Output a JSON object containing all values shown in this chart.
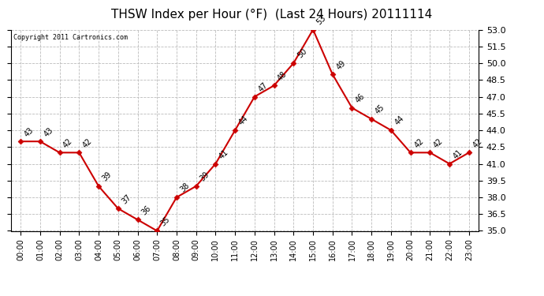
{
  "title": "THSW Index per Hour (°F)  (Last 24 Hours) 20111114",
  "copyright": "Copyright 2011 Cartronics.com",
  "hours": [
    0,
    1,
    2,
    3,
    4,
    5,
    6,
    7,
    8,
    9,
    10,
    11,
    12,
    13,
    14,
    15,
    16,
    17,
    18,
    19,
    20,
    21,
    22,
    23
  ],
  "x_labels": [
    "00:00",
    "01:00",
    "02:00",
    "03:00",
    "04:00",
    "05:00",
    "06:00",
    "07:00",
    "08:00",
    "09:00",
    "10:00",
    "11:00",
    "12:00",
    "13:00",
    "14:00",
    "15:00",
    "16:00",
    "17:00",
    "18:00",
    "19:00",
    "20:00",
    "21:00",
    "22:00",
    "23:00"
  ],
  "values": [
    43,
    43,
    42,
    42,
    39,
    37,
    36,
    35,
    38,
    39,
    41,
    44,
    47,
    48,
    50,
    53,
    49,
    46,
    45,
    44,
    42,
    42,
    41,
    42
  ],
  "ylim": [
    35.0,
    53.0
  ],
  "yticks": [
    35.0,
    36.5,
    38.0,
    39.5,
    41.0,
    42.5,
    44.0,
    45.5,
    47.0,
    48.5,
    50.0,
    51.5,
    53.0
  ],
  "line_color": "#cc0000",
  "marker_color": "#cc0000",
  "bg_color": "#ffffff",
  "grid_color": "#bbbbbb",
  "title_fontsize": 11,
  "annotation_fontsize": 7,
  "tick_fontsize": 8,
  "xlabel_fontsize": 7
}
